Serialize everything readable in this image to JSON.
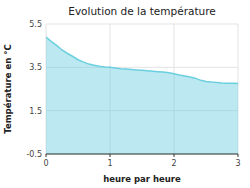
{
  "chart_data": {
    "type": "area",
    "title": "Evolution de la température",
    "x_label": "heure par heure",
    "y_label": "Température en °C",
    "x": [
      0,
      0.08,
      0.17,
      0.25,
      0.33,
      0.42,
      0.5,
      0.58,
      0.67,
      0.75,
      0.83,
      0.92,
      1.0,
      1.08,
      1.17,
      1.25,
      1.33,
      1.42,
      1.5,
      1.58,
      1.67,
      1.75,
      1.83,
      1.92,
      2.0,
      2.08,
      2.17,
      2.25,
      2.33,
      2.42,
      2.5,
      2.58,
      2.67,
      2.75,
      2.83,
      2.92,
      3.0
    ],
    "values": [
      4.9,
      4.7,
      4.5,
      4.3,
      4.15,
      4.0,
      3.85,
      3.75,
      3.65,
      3.6,
      3.55,
      3.52,
      3.5,
      3.47,
      3.44,
      3.42,
      3.4,
      3.38,
      3.36,
      3.34,
      3.32,
      3.3,
      3.28,
      3.25,
      3.2,
      3.15,
      3.1,
      3.05,
      3.0,
      2.9,
      2.85,
      2.82,
      2.8,
      2.78,
      2.77,
      2.76,
      2.75
    ],
    "color": "#6bcfdf",
    "xlim": [
      0,
      3
    ],
    "ylim": [
      -0.5,
      5.5
    ],
    "xticks": [
      0,
      1,
      2,
      3
    ],
    "yticks": [
      -0.5,
      1.5,
      3.5,
      5.5
    ],
    "grid": true
  }
}
